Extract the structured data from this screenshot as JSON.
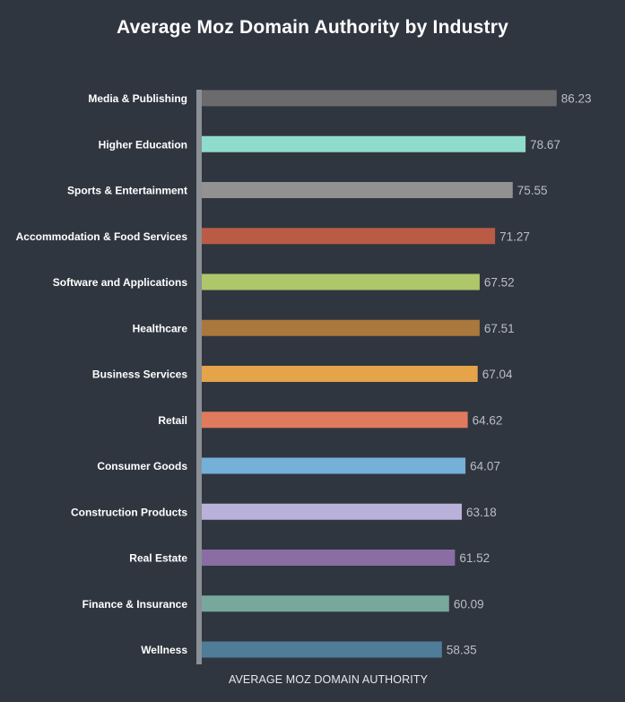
{
  "chart_data": {
    "type": "bar",
    "orientation": "horizontal",
    "title": "Average Moz Domain Authority by Industry",
    "xlabel": "AVERAGE MOZ DOMAIN AUTHORITY",
    "ylabel": "",
    "xlim": [
      0,
      100
    ],
    "grid": false,
    "categories": [
      "Media & Publishing",
      "Higher Education",
      "Sports & Entertainment",
      "Accommodation & Food Services",
      "Software and Applications",
      "Healthcare",
      "Business Services",
      "Retail",
      "Consumer Goods",
      "Construction Products",
      "Real Estate",
      "Finance & Insurance",
      "Wellness"
    ],
    "values": [
      86.23,
      78.67,
      75.55,
      71.27,
      67.52,
      67.51,
      67.04,
      64.62,
      64.07,
      63.18,
      61.52,
      60.09,
      58.35
    ],
    "value_labels": [
      "86.23",
      "78.67",
      "75.55",
      "71.27",
      "67.52",
      "67.51",
      "67.04",
      "64.62",
      "64.07",
      "63.18",
      "61.52",
      "60.09",
      "58.35"
    ],
    "colors": [
      "#6b6b6d",
      "#8fdccd",
      "#929292",
      "#b95b45",
      "#aec76a",
      "#aa773c",
      "#e5a34a",
      "#e07a5c",
      "#74b0d8",
      "#b9b1d9",
      "#8a6da2",
      "#78a89c",
      "#4f7c98"
    ]
  }
}
